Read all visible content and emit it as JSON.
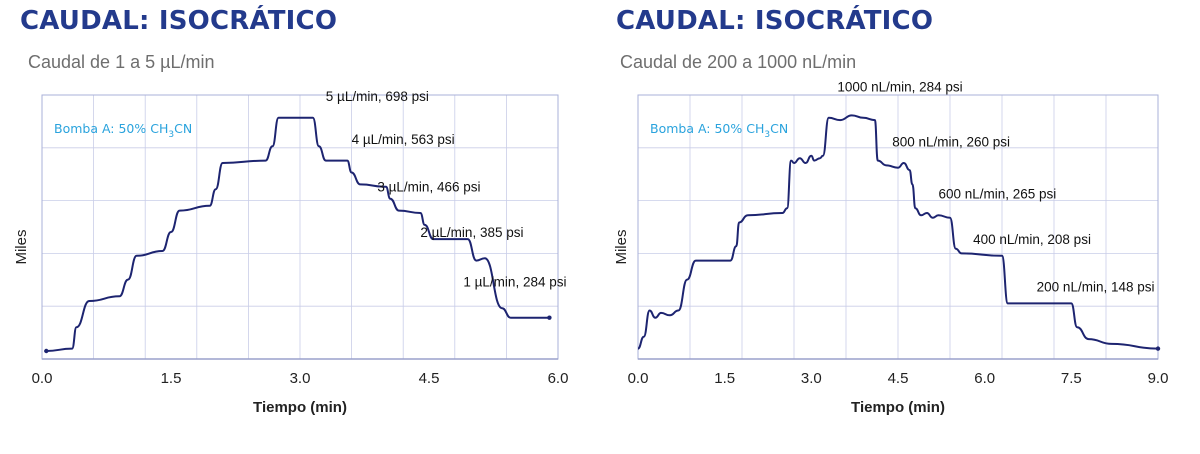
{
  "chart_data": [
    {
      "type": "line",
      "title": "CAUDAL: ISOCRÁTICO",
      "subtitle": "Caudal de 1 a 5 µL/min",
      "xlabel": "Tiempo (min)",
      "ylabel": "Miles",
      "xlim": [
        0,
        6
      ],
      "xticks": [
        "0.0",
        "1.5",
        "3.0",
        "4.5",
        "6.0"
      ],
      "grid": true,
      "legend_text": "Bomba A: 50% CH₃CN",
      "series": [
        {
          "color": "#1d2470",
          "x": [
            0.05,
            0.35,
            0.4,
            0.55,
            0.9,
            1.0,
            1.1,
            1.4,
            1.5,
            1.6,
            1.95,
            2.02,
            2.1,
            2.6,
            2.68,
            2.75,
            3.15,
            3.22,
            3.3,
            3.55,
            3.6,
            3.7,
            4.0,
            4.05,
            4.15,
            4.4,
            4.45,
            4.55,
            4.95,
            5.05,
            5.15,
            5.35,
            5.45,
            5.9
          ],
          "y": [
            0.0,
            0.01,
            0.1,
            0.21,
            0.23,
            0.3,
            0.4,
            0.42,
            0.5,
            0.59,
            0.61,
            0.68,
            0.79,
            0.8,
            0.86,
            0.98,
            0.98,
            0.86,
            0.8,
            0.8,
            0.75,
            0.7,
            0.69,
            0.64,
            0.59,
            0.58,
            0.53,
            0.47,
            0.47,
            0.38,
            0.39,
            0.18,
            0.14,
            0.14
          ]
        }
      ],
      "annotations": [
        {
          "text": "5 µL/min,  698 psi",
          "x": 3.3,
          "y": 1.05
        },
        {
          "text": "4 µL/min,  563 psi",
          "x": 3.6,
          "y": 0.87
        },
        {
          "text": "3 µL/min,  466 psi",
          "x": 3.9,
          "y": 0.67
        },
        {
          "text": "2 µL/min,  385 psi",
          "x": 4.4,
          "y": 0.48
        },
        {
          "text": "1 µL/min,  284 psi",
          "x": 4.9,
          "y": 0.27
        }
      ]
    },
    {
      "type": "line",
      "title": "CAUDAL: ISOCRÁTICO",
      "subtitle": "Caudal de 200 a 1000 nL/min",
      "xlabel": "Tiempo (min)",
      "ylabel": "Miles",
      "xlim": [
        0,
        9
      ],
      "xticks": [
        "0.0",
        "1.5",
        "3.0",
        "4.5",
        "6.0",
        "7.5",
        "9.0"
      ],
      "grid": true,
      "legend_text": "Bomba A: 50% CH₃CN",
      "series": [
        {
          "color": "#1d2470",
          "x": [
            0.0,
            0.1,
            0.2,
            0.3,
            0.4,
            0.55,
            0.7,
            0.85,
            1.0,
            1.6,
            1.7,
            1.75,
            1.9,
            2.5,
            2.58,
            2.65,
            2.7,
            2.8,
            2.9,
            3.0,
            3.05,
            3.15,
            3.2,
            3.3,
            3.5,
            3.7,
            3.9,
            4.1,
            4.15,
            4.3,
            4.5,
            4.6,
            4.7,
            4.75,
            4.8,
            4.9,
            5.0,
            5.1,
            5.2,
            5.4,
            5.5,
            5.6,
            6.3,
            6.4,
            6.5,
            7.5,
            7.6,
            7.8,
            8.2,
            9.0
          ],
          "y": [
            0.01,
            0.06,
            0.17,
            0.14,
            0.16,
            0.15,
            0.17,
            0.3,
            0.38,
            0.38,
            0.44,
            0.54,
            0.57,
            0.58,
            0.6,
            0.8,
            0.79,
            0.81,
            0.79,
            0.82,
            0.8,
            0.81,
            0.82,
            0.98,
            0.97,
            0.99,
            0.98,
            0.97,
            0.8,
            0.78,
            0.77,
            0.79,
            0.76,
            0.7,
            0.6,
            0.57,
            0.58,
            0.56,
            0.57,
            0.56,
            0.43,
            0.41,
            0.4,
            0.2,
            0.2,
            0.2,
            0.1,
            0.05,
            0.03,
            0.01
          ]
        }
      ],
      "annotations": [
        {
          "text": "1000 nL/min,  284 psi",
          "x": 3.45,
          "y": 1.09
        },
        {
          "text": "800 nL/min,  260 psi",
          "x": 4.4,
          "y": 0.86
        },
        {
          "text": "600 nL/min,  265 psi",
          "x": 5.2,
          "y": 0.64
        },
        {
          "text": "400 nL/min,  208 psi",
          "x": 5.8,
          "y": 0.45
        },
        {
          "text": "200 nL/min,  148 psi",
          "x": 6.9,
          "y": 0.25
        }
      ]
    }
  ]
}
